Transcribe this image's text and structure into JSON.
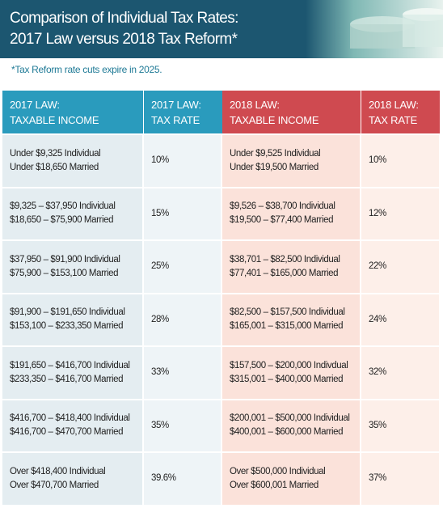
{
  "header": {
    "title": [
      "Comparison of Individual Tax Rates:",
      "2017 Law versus 2018 Tax Reform*"
    ],
    "note": "*Tax Reform rate cuts expire in 2025."
  },
  "table": {
    "columns": [
      [
        "2017 LAW:",
        "TAXABLE INCOME"
      ],
      [
        "2017 LAW:",
        "TAX RATE"
      ],
      [
        "2018 LAW:",
        "TAXABLE INCOME"
      ],
      [
        "2018 LAW:",
        "TAX RATE"
      ]
    ],
    "rows": [
      [
        [
          "Under $9,325 Individual",
          "Under $18,650 Married"
        ],
        [
          "10%"
        ],
        [
          "Under $9,525 Individual",
          "Under $19,500 Married"
        ],
        [
          "10%"
        ]
      ],
      [
        [
          "$9,325 – $37,950 Individual",
          "$18,650 – $75,900 Married"
        ],
        [
          "15%"
        ],
        [
          "$9,526 – $38,700 Individual",
          "$19,500 – $77,400 Married"
        ],
        [
          "12%"
        ]
      ],
      [
        [
          "$37,950 – $91,900 Individual",
          "$75,900 – $153,100 Married"
        ],
        [
          "25%"
        ],
        [
          "$38,701 – $82,500 Individual",
          "$77,401 – $165,000 Married"
        ],
        [
          "22%"
        ]
      ],
      [
        [
          "$91,900 – $191,650 Individual",
          "$153,100 – $233,350 Married"
        ],
        [
          "28%"
        ],
        [
          "$82,500 – $157,500 Individual",
          "$165,001 – $315,000 Married"
        ],
        [
          "24%"
        ]
      ],
      [
        [
          "$191,650 – $416,700 Individual",
          "$233,350 – $416,700 Married"
        ],
        [
          "33%"
        ],
        [
          "$157,500 – $200,000 Indivdual",
          "$315,001 – $400,000 Married"
        ],
        [
          "32%"
        ]
      ],
      [
        [
          "$416,700 – $418,400 Individual",
          "$416,700 – $470,700 Married"
        ],
        [
          "35%"
        ],
        [
          "$200,001 – $500,000 Individual",
          "$400,001 – $600,000 Married"
        ],
        [
          "35%"
        ]
      ],
      [
        [
          "Over $418,400 Individual",
          "Over $470,700 Married"
        ],
        [
          "39.6%"
        ],
        [
          "Over $500,000 Individual",
          "Over $600,001 Married"
        ],
        [
          "37%"
        ]
      ]
    ]
  }
}
